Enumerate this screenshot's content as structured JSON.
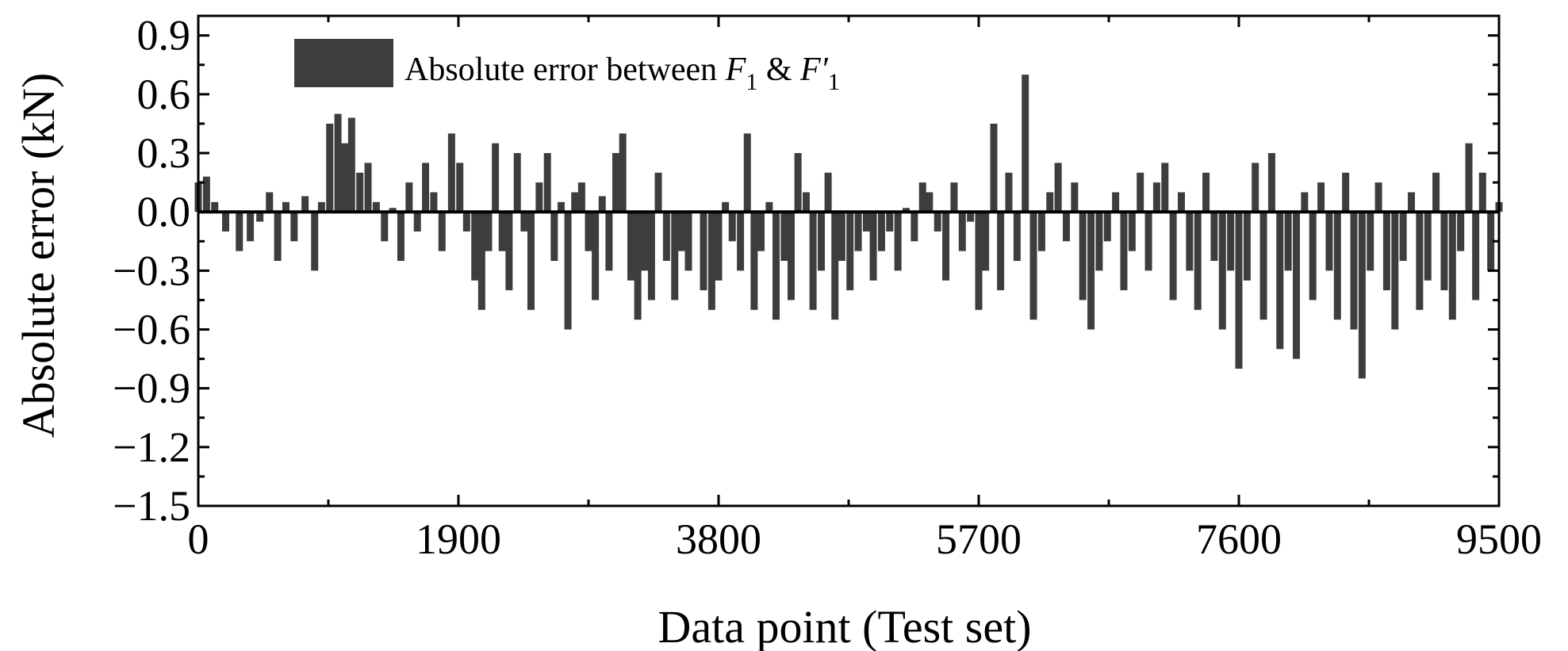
{
  "chart_data": {
    "type": "bar",
    "xlabel": "Data point (Test set)",
    "ylabel": "Absolute error (kN)",
    "xlim": [
      0,
      9500
    ],
    "ylim": [
      -1.5,
      1.0
    ],
    "x_ticks": [
      "0",
      "1900",
      "3800",
      "5700",
      "7600",
      "9500"
    ],
    "y_ticks": [
      "0.9",
      "0.6",
      "0.3",
      "0.0",
      "−0.3",
      "−0.6",
      "−0.9",
      "−1.2",
      "−1.5"
    ],
    "legend": {
      "position": "top-left",
      "label_prefix": "Absolute error between ",
      "f1": "F",
      "f1_sub": "1",
      "amp": " & ",
      "f1p": "F′",
      "f1p_sub": "1"
    },
    "zero_line": true,
    "series": [
      {
        "color": "#3d3d3d",
        "points": [
          [
            0,
            0.15
          ],
          [
            60,
            0.18
          ],
          [
            120,
            0.05
          ],
          [
            200,
            -0.1
          ],
          [
            300,
            -0.2
          ],
          [
            380,
            -0.15
          ],
          [
            450,
            -0.05
          ],
          [
            520,
            0.1
          ],
          [
            580,
            -0.25
          ],
          [
            640,
            0.05
          ],
          [
            700,
            -0.15
          ],
          [
            780,
            0.08
          ],
          [
            850,
            -0.3
          ],
          [
            900,
            0.05
          ],
          [
            960,
            0.45
          ],
          [
            1020,
            0.5
          ],
          [
            1070,
            0.35
          ],
          [
            1120,
            0.48
          ],
          [
            1180,
            0.2
          ],
          [
            1240,
            0.25
          ],
          [
            1300,
            0.05
          ],
          [
            1360,
            -0.15
          ],
          [
            1420,
            0.02
          ],
          [
            1480,
            -0.25
          ],
          [
            1540,
            0.15
          ],
          [
            1600,
            -0.1
          ],
          [
            1660,
            0.25
          ],
          [
            1720,
            0.1
          ],
          [
            1780,
            -0.2
          ],
          [
            1850,
            0.4
          ],
          [
            1910,
            0.25
          ],
          [
            1960,
            -0.1
          ],
          [
            2020,
            -0.35
          ],
          [
            2070,
            -0.5
          ],
          [
            2120,
            -0.2
          ],
          [
            2170,
            0.35
          ],
          [
            2220,
            -0.2
          ],
          [
            2270,
            -0.4
          ],
          [
            2330,
            0.3
          ],
          [
            2380,
            -0.1
          ],
          [
            2430,
            -0.5
          ],
          [
            2490,
            0.15
          ],
          [
            2550,
            0.3
          ],
          [
            2600,
            -0.25
          ],
          [
            2650,
            0.05
          ],
          [
            2700,
            -0.6
          ],
          [
            2750,
            0.1
          ],
          [
            2800,
            0.15
          ],
          [
            2850,
            -0.2
          ],
          [
            2900,
            -0.45
          ],
          [
            2950,
            0.08
          ],
          [
            3000,
            -0.3
          ],
          [
            3050,
            0.3
          ],
          [
            3100,
            0.4
          ],
          [
            3160,
            -0.35
          ],
          [
            3210,
            -0.55
          ],
          [
            3260,
            -0.3
          ],
          [
            3310,
            -0.45
          ],
          [
            3360,
            0.2
          ],
          [
            3420,
            -0.25
          ],
          [
            3480,
            -0.45
          ],
          [
            3530,
            -0.2
          ],
          [
            3580,
            -0.3
          ],
          [
            3640,
            0.0
          ],
          [
            3690,
            -0.4
          ],
          [
            3750,
            -0.5
          ],
          [
            3800,
            -0.35
          ],
          [
            3850,
            0.05
          ],
          [
            3900,
            -0.15
          ],
          [
            3960,
            -0.3
          ],
          [
            4010,
            0.4
          ],
          [
            4060,
            -0.5
          ],
          [
            4110,
            -0.2
          ],
          [
            4170,
            0.05
          ],
          [
            4220,
            -0.55
          ],
          [
            4280,
            -0.25
          ],
          [
            4330,
            -0.45
          ],
          [
            4380,
            0.3
          ],
          [
            4440,
            0.1
          ],
          [
            4490,
            -0.5
          ],
          [
            4550,
            -0.3
          ],
          [
            4600,
            0.2
          ],
          [
            4650,
            -0.55
          ],
          [
            4700,
            -0.25
          ],
          [
            4760,
            -0.4
          ],
          [
            4820,
            -0.2
          ],
          [
            4880,
            -0.1
          ],
          [
            4930,
            -0.35
          ],
          [
            4990,
            -0.2
          ],
          [
            5050,
            -0.1
          ],
          [
            5110,
            -0.3
          ],
          [
            5170,
            0.02
          ],
          [
            5230,
            -0.15
          ],
          [
            5290,
            0.15
          ],
          [
            5340,
            0.1
          ],
          [
            5400,
            -0.1
          ],
          [
            5460,
            -0.35
          ],
          [
            5520,
            0.15
          ],
          [
            5580,
            -0.2
          ],
          [
            5640,
            -0.05
          ],
          [
            5700,
            -0.5
          ],
          [
            5750,
            -0.3
          ],
          [
            5810,
            0.45
          ],
          [
            5860,
            -0.4
          ],
          [
            5920,
            0.2
          ],
          [
            5980,
            -0.25
          ],
          [
            6040,
            0.7
          ],
          [
            6100,
            -0.55
          ],
          [
            6160,
            -0.2
          ],
          [
            6220,
            0.1
          ],
          [
            6280,
            0.25
          ],
          [
            6340,
            -0.15
          ],
          [
            6400,
            0.15
          ],
          [
            6460,
            -0.45
          ],
          [
            6520,
            -0.6
          ],
          [
            6580,
            -0.3
          ],
          [
            6640,
            -0.15
          ],
          [
            6700,
            0.1
          ],
          [
            6760,
            -0.4
          ],
          [
            6820,
            -0.2
          ],
          [
            6880,
            0.2
          ],
          [
            6940,
            -0.3
          ],
          [
            7000,
            0.15
          ],
          [
            7060,
            0.25
          ],
          [
            7120,
            -0.45
          ],
          [
            7180,
            0.1
          ],
          [
            7240,
            -0.3
          ],
          [
            7300,
            -0.5
          ],
          [
            7360,
            0.2
          ],
          [
            7420,
            -0.25
          ],
          [
            7480,
            -0.6
          ],
          [
            7540,
            -0.3
          ],
          [
            7600,
            -0.8
          ],
          [
            7660,
            -0.35
          ],
          [
            7720,
            0.25
          ],
          [
            7780,
            -0.55
          ],
          [
            7840,
            0.3
          ],
          [
            7900,
            -0.7
          ],
          [
            7960,
            -0.3
          ],
          [
            8020,
            -0.75
          ],
          [
            8080,
            0.1
          ],
          [
            8140,
            -0.45
          ],
          [
            8200,
            0.15
          ],
          [
            8260,
            -0.3
          ],
          [
            8320,
            -0.55
          ],
          [
            8380,
            0.2
          ],
          [
            8440,
            -0.6
          ],
          [
            8500,
            -0.85
          ],
          [
            8560,
            -0.3
          ],
          [
            8620,
            0.15
          ],
          [
            8680,
            -0.4
          ],
          [
            8740,
            -0.6
          ],
          [
            8800,
            -0.25
          ],
          [
            8860,
            0.1
          ],
          [
            8920,
            -0.5
          ],
          [
            8980,
            -0.35
          ],
          [
            9040,
            0.2
          ],
          [
            9100,
            -0.4
          ],
          [
            9160,
            -0.55
          ],
          [
            9220,
            -0.2
          ],
          [
            9280,
            0.35
          ],
          [
            9330,
            -0.45
          ],
          [
            9380,
            0.2
          ],
          [
            9440,
            -0.3
          ],
          [
            9500,
            0.05
          ]
        ]
      }
    ]
  }
}
